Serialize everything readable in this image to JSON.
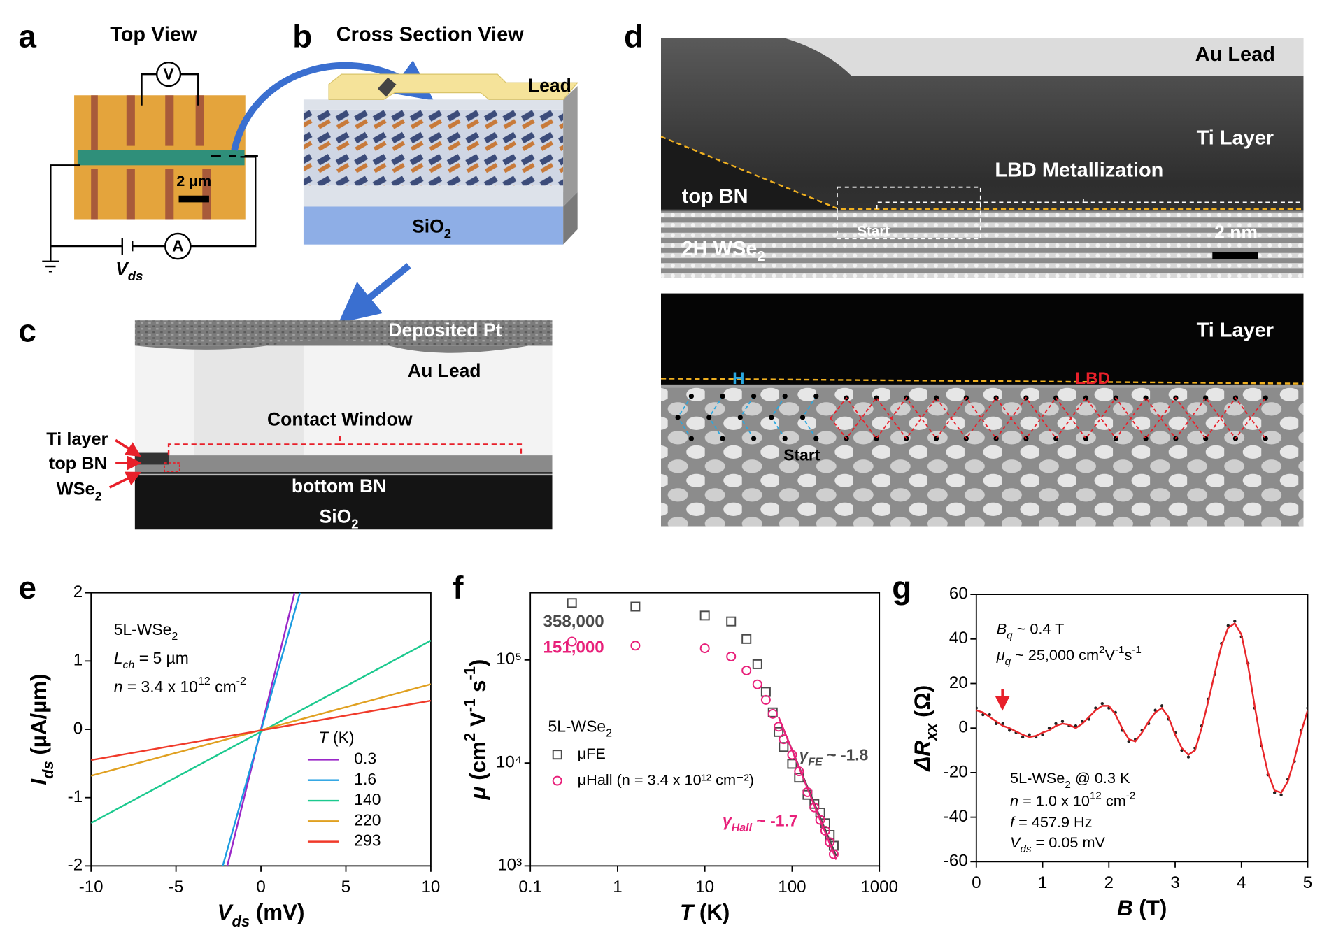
{
  "panels": {
    "a": {
      "label": "a",
      "title": "Top View",
      "voltmeter": "V",
      "ammeter": "A",
      "scale_bar": "2 µm",
      "bias": [
        "V",
        "ds"
      ]
    },
    "b": {
      "label": "b",
      "title": "Cross Section View",
      "lead": "Lead",
      "substrate": [
        "SiO",
        "2"
      ]
    },
    "c": {
      "label": "c",
      "cap": "Deposited Pt",
      "lead": "Au Lead",
      "window": "Contact Window",
      "ti": "Ti layer",
      "top_bn": "top BN",
      "wse2": [
        "WSe",
        "2"
      ],
      "bottom_bn": "bottom BN",
      "substrate": [
        "SiO",
        "2"
      ]
    },
    "d": {
      "label": "d",
      "au": "Au Lead",
      "ti": "Ti Layer",
      "lbd_metal": "LBD Metallization",
      "top_bn": "top BN",
      "start": "Start",
      "wse2": [
        "2H WSe",
        "2"
      ],
      "scale_bar": "2 nm",
      "ti_zoom": "Ti Layer",
      "h": "H",
      "lbd": "LBD",
      "start_zoom": "Start"
    }
  },
  "chart_data": [
    {
      "type": "line",
      "label": "e",
      "xlabel": [
        "V",
        "ds",
        " (mV)"
      ],
      "ylabel": [
        "I",
        "ds",
        " (µA/µm)"
      ],
      "xlim": [
        -10,
        10
      ],
      "ylim": [
        -2,
        2
      ],
      "xticks": [
        -10,
        -5,
        0,
        5,
        10
      ],
      "yticks": [
        -2,
        -1,
        0,
        1,
        2
      ],
      "annotations": [
        [
          "5L-WSe",
          "2"
        ],
        [
          "L",
          "ch",
          " = 5 µm"
        ],
        [
          "n",
          " = 3.4 x 10",
          "12",
          " cm",
          "-2"
        ]
      ],
      "legend_title": [
        "T",
        " (K)"
      ],
      "series": [
        {
          "name": "0.3",
          "color": "#9a27c8",
          "x": [
            -1.98,
            1.98
          ],
          "values": [
            -2,
            2
          ]
        },
        {
          "name": "1.6",
          "color": "#1a9be0",
          "x": [
            -2.25,
            2.3
          ],
          "values": [
            -2,
            2
          ]
        },
        {
          "name": "140",
          "color": "#1bc98e",
          "x": [
            -10,
            10
          ],
          "values": [
            -1.37,
            1.3
          ]
        },
        {
          "name": "220",
          "color": "#e0a020",
          "x": [
            -10,
            10
          ],
          "values": [
            -0.68,
            0.66
          ]
        },
        {
          "name": "293",
          "color": "#f03a2a",
          "x": [
            -10,
            10
          ],
          "values": [
            -0.45,
            0.42
          ]
        }
      ]
    },
    {
      "type": "scatter",
      "label": "f",
      "xlabel": [
        "T",
        " (K)"
      ],
      "ylabel": [
        "μ",
        " (cm",
        "2",
        " V",
        "-1",
        " s",
        "-1",
        ")"
      ],
      "xscale": "log",
      "yscale": "log",
      "xlim": [
        0.1,
        1000
      ],
      "ylim": [
        1000,
        450000
      ],
      "xticks": [
        0.1,
        1,
        10,
        100,
        1000
      ],
      "yticks": [
        {
          "value": 1000,
          "label": "10³"
        },
        {
          "value": 10000,
          "label": "10⁴"
        },
        {
          "value": 100000,
          "label": "10⁵"
        }
      ],
      "annotations": [
        [
          "5L-WSe",
          "2"
        ],
        [
          "γ",
          "FE",
          " ~ -1.8"
        ],
        [
          "γ",
          "Hall",
          " ~ -1.7"
        ]
      ],
      "x": [
        0.3,
        1.6,
        10,
        20,
        30,
        40,
        50,
        60,
        70,
        80,
        100,
        120,
        150,
        180,
        210,
        240,
        270,
        300
      ],
      "series": [
        {
          "name": "μFE",
          "marker": "square",
          "color": "#4a4a4a",
          "values": [
            358000,
            330000,
            270000,
            237000,
            160000,
            91000,
            49000,
            31000,
            20000,
            14300,
            9800,
            7200,
            4900,
            4000,
            3300,
            2600,
            2000,
            1570
          ],
          "value_labels": [
            "358,000",
            null,
            null,
            null,
            null,
            null,
            null,
            null,
            null,
            null,
            null,
            null,
            null,
            null,
            null,
            null,
            null,
            null
          ],
          "fit": {
            "x": [
              75,
              320
            ],
            "values": [
              24000,
              1250
            ]
          }
        },
        {
          "name": "μHall (n = 3.4 x 10¹² cm⁻²)",
          "marker": "circle",
          "color": "#e8207a",
          "values": [
            151000,
            138000,
            130000,
            108000,
            79000,
            58000,
            41000,
            30000,
            22500,
            17000,
            12000,
            8300,
            5200,
            3700,
            2800,
            2200,
            1700,
            1300
          ],
          "value_labels": [
            "151,000",
            null,
            null,
            null,
            null,
            null,
            null,
            null,
            null,
            null,
            null,
            null,
            null,
            null,
            null,
            null,
            null,
            null
          ],
          "fit": {
            "x": [
              70,
              320
            ],
            "values": [
              28000,
              1150
            ]
          }
        }
      ]
    },
    {
      "type": "line",
      "label": "g",
      "xlabel": [
        "B",
        " (T)"
      ],
      "ylabel": [
        "ΔR",
        "xx",
        " (Ω)"
      ],
      "xlim": [
        0,
        5
      ],
      "ylim": [
        -60,
        60
      ],
      "xticks": [
        0,
        1,
        2,
        3,
        4,
        5
      ],
      "yticks": [
        -60,
        -40,
        -20,
        0,
        20,
        40,
        60
      ],
      "annotations": [
        [
          "B",
          "q",
          " ~ 0.4 T"
        ],
        [
          "μ",
          "q",
          " ~ 25,000 cm",
          "2",
          "V",
          "-1",
          "s",
          "-1"
        ],
        [
          "5L-WSe",
          "2",
          " @ 0.3 K"
        ],
        [
          "n",
          " = 1.0 x 10",
          "12",
          " cm",
          "-2"
        ],
        [
          "f",
          " = 457.9 Hz"
        ],
        [
          "V",
          "ds",
          " = 0.05 mV"
        ]
      ],
      "x": [
        0,
        0.1,
        0.2,
        0.3,
        0.4,
        0.5,
        0.6,
        0.7,
        0.8,
        0.9,
        1,
        1.1,
        1.2,
        1.3,
        1.4,
        1.5,
        1.6,
        1.7,
        1.8,
        1.9,
        2,
        2.1,
        2.2,
        2.3,
        2.4,
        2.5,
        2.6,
        2.7,
        2.8,
        2.9,
        3,
        3.1,
        3.2,
        3.3,
        3.4,
        3.5,
        3.6,
        3.7,
        3.8,
        3.9,
        4,
        4.1,
        4.2,
        4.3,
        4.4,
        4.5,
        4.6,
        4.7,
        4.8,
        4.9,
        5
      ],
      "series": [
        {
          "marker": "dot",
          "color": "#222222",
          "values": [
            9,
            6,
            6,
            2,
            2,
            -1,
            -2,
            -4,
            -3,
            -4,
            -3,
            0,
            2,
            3,
            1,
            1,
            3,
            4,
            9,
            11,
            9,
            7,
            -1,
            -6,
            -5,
            -1,
            2,
            8,
            10,
            4,
            -2,
            -10,
            -13,
            -9,
            1,
            13,
            24,
            38,
            46,
            48,
            41,
            29,
            9,
            -8,
            -21,
            -29,
            -30,
            -23,
            -15,
            -1,
            9
          ]
        },
        {
          "marker": "none",
          "color": "#e8262a",
          "values": [
            8,
            7,
            5,
            3,
            1,
            0,
            -1.5,
            -3,
            -4,
            -3.5,
            -2,
            -1,
            1,
            2,
            1.5,
            0,
            2,
            5,
            8,
            10,
            10,
            6,
            0,
            -5,
            -6,
            -2,
            3,
            7,
            9,
            5,
            -3,
            -9,
            -12,
            -10,
            0,
            12,
            25,
            37,
            45,
            47,
            42,
            28,
            10,
            -7,
            -20,
            -28,
            -29,
            -24,
            -14,
            -2,
            8
          ]
        }
      ]
    }
  ]
}
